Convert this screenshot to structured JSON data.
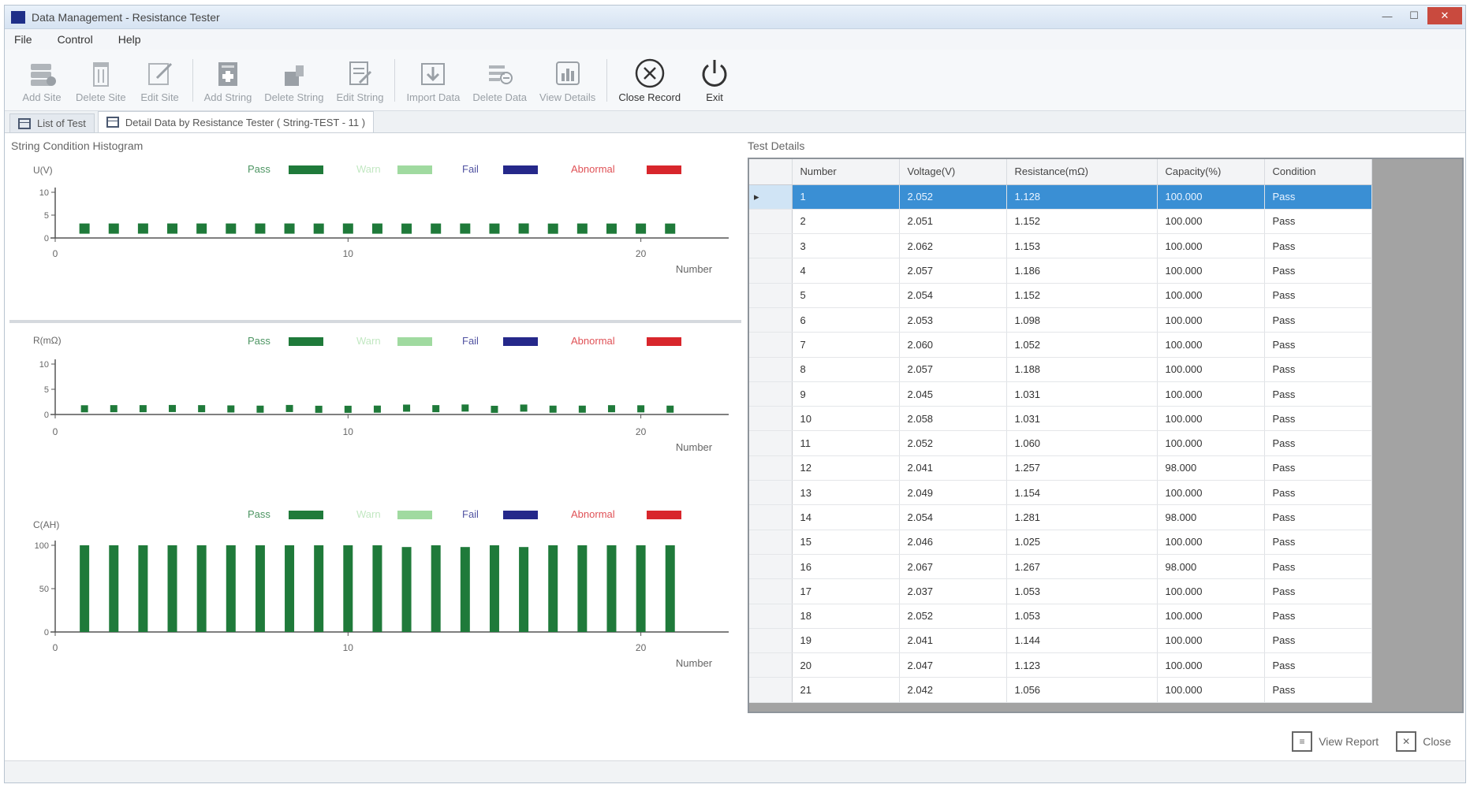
{
  "window": {
    "title": "Data Management - Resistance Tester",
    "controls": {
      "minimize": "—",
      "maximize": "☐",
      "close": "✕"
    }
  },
  "menu": [
    "File",
    "Control",
    "Help"
  ],
  "toolbar": [
    {
      "label": "Add Site",
      "icon": "add-site-icon"
    },
    {
      "label": "Delete Site",
      "icon": "delete-site-icon"
    },
    {
      "label": "Edit Site",
      "icon": "edit-site-icon"
    },
    {
      "label": "Add String",
      "icon": "add-string-icon"
    },
    {
      "label": "Delete String",
      "icon": "delete-string-icon"
    },
    {
      "label": "Edit String",
      "icon": "edit-string-icon"
    },
    {
      "label": "Import Data",
      "icon": "import-data-icon"
    },
    {
      "label": "Delete Data",
      "icon": "delete-data-icon"
    },
    {
      "label": "View Details",
      "icon": "view-details-icon"
    },
    {
      "label": "Close Record",
      "icon": "close-record-icon"
    },
    {
      "label": "Exit",
      "icon": "power-icon"
    }
  ],
  "tabs": [
    {
      "label": "List of Test"
    },
    {
      "label": "Detail Data by Resistance Tester ( String-TEST - 11 )"
    }
  ],
  "left_panel_title": "String Condition Histogram",
  "right_panel_title": "Test Details",
  "legend": [
    {
      "label": "Pass",
      "color": "#1f7a3a"
    },
    {
      "label": "Warn",
      "color": "#8fd48f"
    },
    {
      "label": "Fail",
      "color": "#25288a"
    },
    {
      "label": "Abnormal",
      "color": "#d8262c"
    }
  ],
  "chart_data": [
    {
      "type": "scatter",
      "ylabel": "U(V)",
      "xlabel": "Number",
      "ylim": [
        0,
        10
      ],
      "yticks": [
        "10",
        "5",
        "0"
      ],
      "xticks": [
        "0",
        "10",
        "20"
      ],
      "x": [
        1,
        2,
        3,
        4,
        5,
        6,
        7,
        8,
        9,
        10,
        11,
        12,
        13,
        14,
        15,
        16,
        17,
        18,
        19,
        20,
        21
      ],
      "values": [
        2.052,
        2.051,
        2.062,
        2.057,
        2.054,
        2.053,
        2.06,
        2.057,
        2.045,
        2.058,
        2.052,
        2.041,
        2.049,
        2.054,
        2.046,
        2.067,
        2.037,
        2.052,
        2.041,
        2.047,
        2.042
      ]
    },
    {
      "type": "scatter",
      "ylabel": "R(mΩ)",
      "xlabel": "Number",
      "ylim": [
        0,
        10
      ],
      "yticks": [
        "10",
        "5",
        "0"
      ],
      "xticks": [
        "0",
        "10",
        "20"
      ],
      "x": [
        1,
        2,
        3,
        4,
        5,
        6,
        7,
        8,
        9,
        10,
        11,
        12,
        13,
        14,
        15,
        16,
        17,
        18,
        19,
        20,
        21
      ],
      "values": [
        1.128,
        1.152,
        1.153,
        1.186,
        1.152,
        1.098,
        1.052,
        1.188,
        1.031,
        1.031,
        1.06,
        1.257,
        1.154,
        1.281,
        1.025,
        1.267,
        1.053,
        1.053,
        1.144,
        1.123,
        1.056
      ]
    },
    {
      "type": "bar",
      "ylabel": "C(AH)",
      "xlabel": "Number",
      "ylim": [
        0,
        100
      ],
      "yticks": [
        "100",
        "50",
        "0"
      ],
      "xticks": [
        "0",
        "10",
        "20"
      ],
      "x": [
        1,
        2,
        3,
        4,
        5,
        6,
        7,
        8,
        9,
        10,
        11,
        12,
        13,
        14,
        15,
        16,
        17,
        18,
        19,
        20,
        21
      ],
      "values": [
        100,
        100,
        100,
        100,
        100,
        100,
        100,
        100,
        100,
        100,
        100,
        98,
        100,
        98,
        100,
        98,
        100,
        100,
        100,
        100,
        100
      ]
    }
  ],
  "table": {
    "columns": [
      "Number",
      "Voltage(V)",
      "Resistance(mΩ)",
      "Capacity(%)",
      "Condition"
    ],
    "selected_row": 0,
    "rows": [
      [
        "1",
        "2.052",
        "1.128",
        "100.000",
        "Pass"
      ],
      [
        "2",
        "2.051",
        "1.152",
        "100.000",
        "Pass"
      ],
      [
        "3",
        "2.062",
        "1.153",
        "100.000",
        "Pass"
      ],
      [
        "4",
        "2.057",
        "1.186",
        "100.000",
        "Pass"
      ],
      [
        "5",
        "2.054",
        "1.152",
        "100.000",
        "Pass"
      ],
      [
        "6",
        "2.053",
        "1.098",
        "100.000",
        "Pass"
      ],
      [
        "7",
        "2.060",
        "1.052",
        "100.000",
        "Pass"
      ],
      [
        "8",
        "2.057",
        "1.188",
        "100.000",
        "Pass"
      ],
      [
        "9",
        "2.045",
        "1.031",
        "100.000",
        "Pass"
      ],
      [
        "10",
        "2.058",
        "1.031",
        "100.000",
        "Pass"
      ],
      [
        "11",
        "2.052",
        "1.060",
        "100.000",
        "Pass"
      ],
      [
        "12",
        "2.041",
        "1.257",
        "98.000",
        "Pass"
      ],
      [
        "13",
        "2.049",
        "1.154",
        "100.000",
        "Pass"
      ],
      [
        "14",
        "2.054",
        "1.281",
        "98.000",
        "Pass"
      ],
      [
        "15",
        "2.046",
        "1.025",
        "100.000",
        "Pass"
      ],
      [
        "16",
        "2.067",
        "1.267",
        "98.000",
        "Pass"
      ],
      [
        "17",
        "2.037",
        "1.053",
        "100.000",
        "Pass"
      ],
      [
        "18",
        "2.052",
        "1.053",
        "100.000",
        "Pass"
      ],
      [
        "19",
        "2.041",
        "1.144",
        "100.000",
        "Pass"
      ],
      [
        "20",
        "2.047",
        "1.123",
        "100.000",
        "Pass"
      ],
      [
        "21",
        "2.042",
        "1.056",
        "100.000",
        "Pass"
      ]
    ]
  },
  "footer": {
    "view_report": "View Report",
    "close": "Close"
  }
}
